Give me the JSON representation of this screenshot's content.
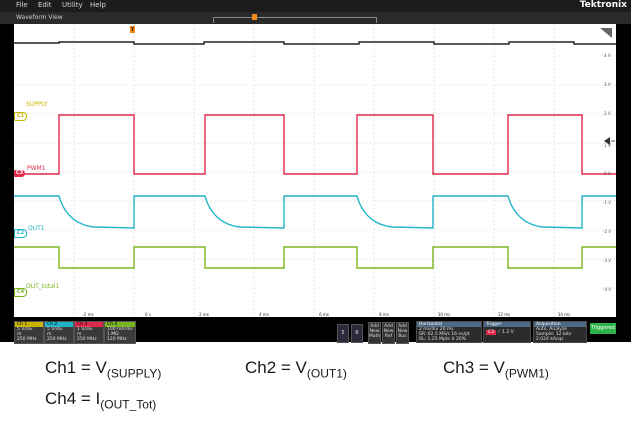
{
  "menu": {
    "items": [
      "File",
      "Edit",
      "Utility",
      "Help"
    ],
    "brand": "Tektronix"
  },
  "waveform_view": {
    "title": "Waveform View"
  },
  "channels": [
    {
      "id": "C1",
      "label": "SUPPLY",
      "color": "#c8b400"
    },
    {
      "id": "C3",
      "label": "PWM1",
      "color": "#e0284a"
    },
    {
      "id": "C2",
      "label": "OUT1",
      "color": "#1fb4c8"
    },
    {
      "id": "C4",
      "label": "OUT_total1",
      "color": "#7ab51e"
    }
  ],
  "trigger_marker": "T",
  "right_scale": [
    "4 V",
    "3 V",
    "2 V",
    "1 V",
    "0 V",
    "-1 V",
    "-2 V",
    "-3 V",
    "-4 V"
  ],
  "time_axis": [
    "-2 ms",
    "0 s",
    "2 ms",
    "4 ms",
    "6 ms",
    "8 ms",
    "10 ms",
    "12 ms",
    "14 ms"
  ],
  "channel_badges": [
    {
      "name": "Ch 1",
      "lines": [
        "5 V/div",
        "m",
        "250 MHz"
      ],
      "color": "#c8b400"
    },
    {
      "name": "Ch 2",
      "lines": [
        "5 V/div",
        "m",
        "250 MHz"
      ],
      "color": "#1fb4c8"
    },
    {
      "name": "Ch 3",
      "lines": [
        "1 V/div",
        "m",
        "250 MHz"
      ],
      "color": "#e0284a"
    },
    {
      "name": "Ch 4",
      "lines": [
        "100 mA/div",
        "1 MΩ",
        "120 MHz"
      ],
      "color": "#7ab51e"
    }
  ],
  "bottom_buttons": [
    "5",
    "6"
  ],
  "add_buttons": [
    "Add\nNew\nMath",
    "Add\nNew\nRef",
    "Add\nNew\nBus"
  ],
  "horizontal": {
    "title": "Horizontal",
    "lines": [
      "2 ms/div      20 ms",
      "SR: 62.5 MS/s   16 ns/pt",
      "RL: 1.25 Mpts   ⊻ 20%"
    ]
  },
  "trigger": {
    "title": "Trigger",
    "channel": "C3",
    "level": "1.2 V"
  },
  "acquisition": {
    "title": "Acquisition",
    "lines": [
      "Auto,       Analyze",
      "Sample: 12 bits",
      "2.024 kAcqs"
    ]
  },
  "status": "Triggered",
  "caption": {
    "ch1": {
      "prefix": "Ch1 = V",
      "sub": "(SUPPLY)"
    },
    "ch2": {
      "prefix": "Ch2 = V",
      "sub": "(OUT1)"
    },
    "ch3": {
      "prefix": "Ch3 = V",
      "sub": "(PWM1)"
    },
    "ch4": {
      "prefix": "Ch4 = I",
      "sub": "(OUT_Tot)"
    }
  }
}
